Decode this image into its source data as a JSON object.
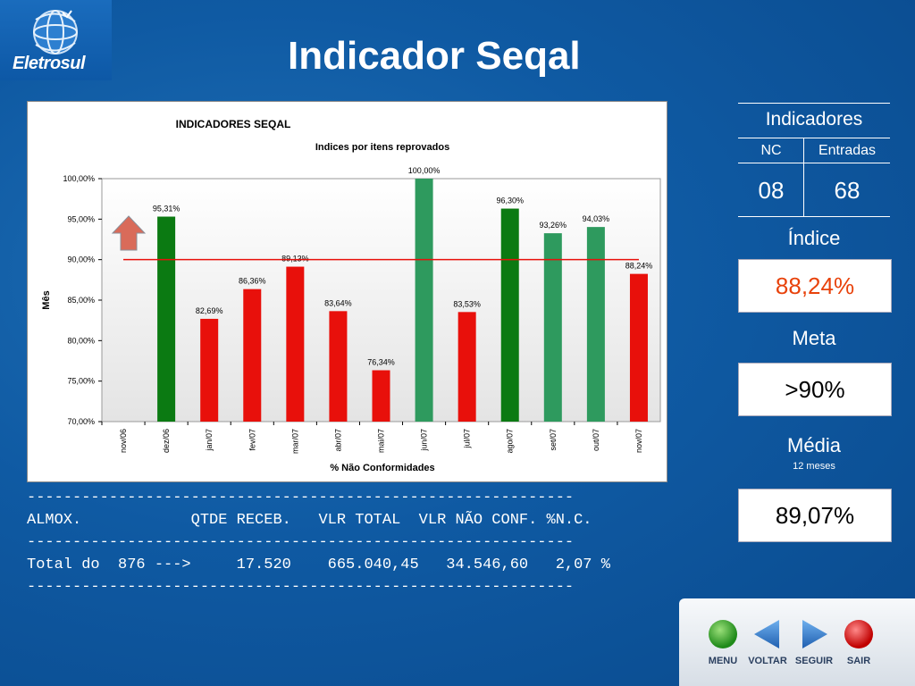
{
  "header": {
    "logo_text": "Eletrosul",
    "title": "Indicador Seqal"
  },
  "chart_data": {
    "type": "bar",
    "title": "INDICADORES SEQAL",
    "subtitle": "Indices por itens reprovados",
    "ylabel": "Mês",
    "xlabel": "% Não Conformidades",
    "categories": [
      "nov/06",
      "dez/06",
      "jan/07",
      "fev/07",
      "mar/07",
      "abr/07",
      "mai/07",
      "jun/07",
      "jul/07",
      "ago/07",
      "set/07",
      "out/07",
      "nov/07"
    ],
    "values": [
      null,
      95.31,
      82.69,
      86.36,
      89.13,
      83.64,
      76.34,
      100.0,
      83.53,
      96.3,
      93.26,
      94.03,
      88.24
    ],
    "data_labels": [
      "",
      "95,31%",
      "82,69%",
      "86,36%",
      "89,13%",
      "83,64%",
      "76,34%",
      "100,00%",
      "83,53%",
      "96,30%",
      "93,26%",
      "94,03%",
      "88,24%"
    ],
    "bar_colors": [
      "#ffffff",
      "#0b7a12",
      "#e8100b",
      "#e8100b",
      "#e8100b",
      "#e8100b",
      "#e8100b",
      "#2e9a5e",
      "#e8100b",
      "#0b7a12",
      "#2e9a5e",
      "#2e9a5e",
      "#e8100b"
    ],
    "target_line": 90,
    "ylim": [
      70,
      100
    ],
    "ytick_labels": [
      "70,00%",
      "75,00%",
      "80,00%",
      "85,00%",
      "90,00%",
      "95,00%",
      "100,00%"
    ],
    "yticks": [
      70,
      75,
      80,
      85,
      90,
      95,
      100
    ],
    "grid": false
  },
  "side": {
    "indicadores_label": "Indicadores",
    "nc_label": "NC",
    "entradas_label": "Entradas",
    "nc_value": "08",
    "entradas_value": "68",
    "indice_label": "Índice",
    "indice_value": "88,24%",
    "meta_label": "Meta",
    "meta_value": ">90%",
    "media_label": "Média",
    "media_sub": "12 meses",
    "media_value": "89,07%",
    "indice_color": "#e8420b"
  },
  "table": {
    "rule": "------------------------------------------------------------",
    "header_line": "ALMOX.            QTDE RECEB.   VLR TOTAL  VLR NÃO CONF. %N.C.",
    "total_line": "Total do  876 --->     17.520    665.040,45   34.546,60   2,07 %"
  },
  "nav": {
    "menu": "MENU",
    "voltar": "VOLTAR",
    "seguir": "SEGUIR",
    "sair": "SAIR"
  }
}
